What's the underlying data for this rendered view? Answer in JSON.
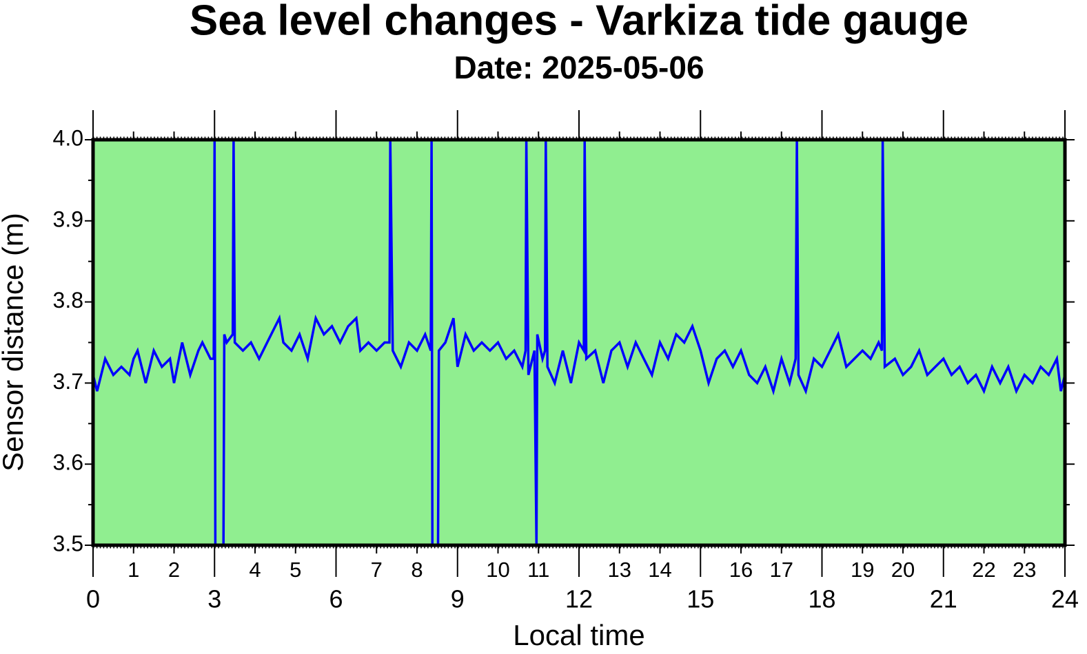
{
  "chart_data": {
    "type": "line",
    "title": "Sea level changes - Varkiza tide gauge",
    "subtitle": "Date: 2025-05-06",
    "x_label": "Local time",
    "y_label": "Sensor distance (m)",
    "background": "#90ee90",
    "xlim": [
      0,
      24
    ],
    "ylim": [
      3.5,
      4.0
    ],
    "xticks": [
      0,
      3,
      6,
      9,
      12,
      15,
      18,
      21,
      24
    ],
    "xticks_minor": [
      1,
      2,
      4,
      5,
      7,
      8,
      10,
      11,
      13,
      14,
      16,
      17,
      19,
      20,
      22,
      23
    ],
    "yticks": [
      3.5,
      3.6,
      3.7,
      3.8,
      3.9,
      {
        "value": 4.0,
        "label": "4.0"
      }
    ],
    "series": [
      {
        "name": "Sensor distance",
        "color": "#0000ff",
        "x": [
          0,
          0.1,
          0.3,
          0.5,
          0.7,
          0.9,
          1.0,
          1.1,
          1.3,
          1.5,
          1.7,
          1.9,
          2.0,
          2.2,
          2.4,
          2.6,
          2.7,
          2.9,
          2.98,
          3.0,
          3.02,
          3.22,
          3.24,
          3.3,
          3.45,
          3.47,
          3.5,
          3.7,
          3.9,
          4.1,
          4.3,
          4.5,
          4.6,
          4.7,
          4.9,
          5.1,
          5.3,
          5.5,
          5.7,
          5.9,
          6.1,
          6.3,
          6.5,
          6.6,
          6.8,
          7.0,
          7.2,
          7.32,
          7.34,
          7.4,
          7.6,
          7.8,
          8.0,
          8.2,
          8.34,
          8.36,
          8.38,
          8.52,
          8.54,
          8.7,
          8.9,
          9.0,
          9.2,
          9.4,
          9.6,
          9.8,
          10.0,
          10.2,
          10.4,
          10.6,
          10.68,
          10.7,
          10.75,
          10.9,
          10.95,
          10.97,
          11.1,
          11.16,
          11.18,
          11.22,
          11.4,
          11.6,
          11.8,
          12.0,
          12.12,
          12.14,
          12.18,
          12.4,
          12.6,
          12.8,
          13.0,
          13.2,
          13.4,
          13.6,
          13.8,
          14.0,
          14.2,
          14.4,
          14.6,
          14.8,
          15.0,
          15.2,
          15.4,
          15.6,
          15.8,
          16.0,
          16.2,
          16.4,
          16.6,
          16.8,
          17.0,
          17.2,
          17.35,
          17.38,
          17.42,
          17.6,
          17.8,
          18.0,
          18.2,
          18.4,
          18.6,
          18.8,
          19.0,
          19.2,
          19.4,
          19.48,
          19.5,
          19.55,
          19.8,
          20.0,
          20.2,
          20.4,
          20.6,
          20.8,
          21.0,
          21.2,
          21.4,
          21.6,
          21.8,
          22.0,
          22.2,
          22.4,
          22.6,
          22.8,
          23.0,
          23.2,
          23.4,
          23.6,
          23.8,
          23.9,
          24.0
        ],
        "values": [
          3.71,
          3.69,
          3.73,
          3.71,
          3.72,
          3.71,
          3.73,
          3.74,
          3.7,
          3.74,
          3.72,
          3.73,
          3.7,
          3.75,
          3.71,
          3.74,
          3.75,
          3.73,
          3.73,
          4.0,
          3.5,
          3.5,
          3.76,
          3.75,
          3.76,
          4.0,
          3.75,
          3.74,
          3.75,
          3.73,
          3.75,
          3.77,
          3.78,
          3.75,
          3.74,
          3.76,
          3.73,
          3.78,
          3.76,
          3.77,
          3.75,
          3.77,
          3.78,
          3.74,
          3.75,
          3.74,
          3.75,
          3.75,
          4.0,
          3.74,
          3.72,
          3.75,
          3.74,
          3.76,
          3.74,
          4.0,
          3.5,
          3.5,
          3.74,
          3.75,
          3.78,
          3.72,
          3.76,
          3.74,
          3.75,
          3.74,
          3.75,
          3.73,
          3.74,
          3.72,
          3.74,
          4.0,
          3.71,
          3.74,
          3.5,
          3.76,
          3.73,
          3.74,
          4.0,
          3.72,
          3.7,
          3.74,
          3.7,
          3.75,
          3.74,
          4.0,
          3.73,
          3.74,
          3.7,
          3.74,
          3.75,
          3.72,
          3.75,
          3.73,
          3.71,
          3.75,
          3.73,
          3.76,
          3.75,
          3.77,
          3.74,
          3.7,
          3.73,
          3.74,
          3.72,
          3.74,
          3.71,
          3.7,
          3.72,
          3.69,
          3.73,
          3.7,
          3.73,
          4.0,
          3.71,
          3.69,
          3.73,
          3.72,
          3.74,
          3.76,
          3.72,
          3.73,
          3.74,
          3.73,
          3.75,
          3.74,
          4.0,
          3.72,
          3.73,
          3.71,
          3.72,
          3.74,
          3.71,
          3.72,
          3.73,
          3.71,
          3.72,
          3.7,
          3.71,
          3.69,
          3.72,
          3.7,
          3.72,
          3.69,
          3.71,
          3.7,
          3.72,
          3.71,
          3.73,
          3.69,
          3.71
        ]
      }
    ]
  }
}
